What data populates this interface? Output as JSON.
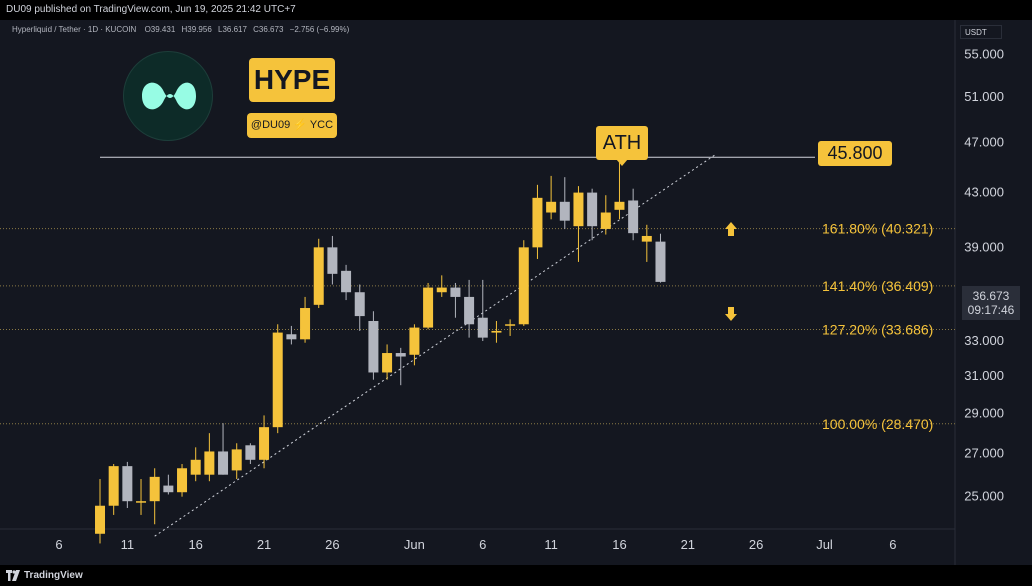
{
  "publish_info": "DU09 published on TradingView.com, Jun 19, 2025 21:42 UTC+7",
  "symbol_line": {
    "name": "Hyperliquid / Tether · 1D · KUCOIN",
    "open": "O39.431",
    "high": "H39.956",
    "low": "L36.617",
    "close": "C36.673",
    "change": "−2.756 (−6.99%)"
  },
  "currency": "USDT",
  "branding": {
    "ticker": "HYPE",
    "handle": "@DU09",
    "handle_suffix": "YCC",
    "footer": "TradingView"
  },
  "colors": {
    "background": "#141720",
    "bull_candle": "#f5c33b",
    "bear_candle": "#b2b5be",
    "accent_yellow": "#f5c33b",
    "coin_mint": "#97fce4"
  },
  "annotations": {
    "ath_label": "ATH",
    "resistance_label": "45.800",
    "up_arrow": "arrow-up-icon",
    "down_arrow": "arrow-down-icon"
  },
  "last_price": {
    "price": "36.673",
    "countdown": "09:17:46"
  },
  "chart_data": {
    "type": "candlestick",
    "interval": "1D",
    "x_ticks": [
      "6",
      "11",
      "16",
      "21",
      "26",
      "Jun",
      "6",
      "11",
      "16",
      "21",
      "26",
      "Jul",
      "6"
    ],
    "y_ticks": [
      "25.000",
      "27.000",
      "29.000",
      "31.000",
      "33.000",
      "39.000",
      "43.000",
      "47.000",
      "51.000",
      "55.000"
    ],
    "y_scale": "log",
    "ylim": [
      23.6,
      58.5
    ],
    "horizontal_levels": [
      {
        "value": 45.8,
        "label": ""
      },
      {
        "value": 40.321,
        "label": "161.80% (40.321)"
      },
      {
        "value": 36.409,
        "label": "141.40% (36.409)"
      },
      {
        "value": 33.686,
        "label": "127.20% (33.686)"
      },
      {
        "value": 28.47,
        "label": "100.00% (28.470)"
      }
    ],
    "trendline": {
      "from": [
        "May 13",
        23.3
      ],
      "to": [
        "Jun 23",
        46.0
      ]
    },
    "candles": [
      {
        "d": 9,
        "o": 23.4,
        "h": 25.8,
        "l": 23.0,
        "c": 24.6
      },
      {
        "d": 10,
        "o": 24.6,
        "h": 26.5,
        "l": 24.2,
        "c": 26.4
      },
      {
        "d": 11,
        "o": 26.4,
        "h": 26.6,
        "l": 24.5,
        "c": 24.8
      },
      {
        "d": 12,
        "o": 24.8,
        "h": 25.8,
        "l": 24.2,
        "c": 24.8
      },
      {
        "d": 13,
        "o": 24.8,
        "h": 26.3,
        "l": 23.8,
        "c": 25.9
      },
      {
        "d": 14,
        "o": 25.5,
        "h": 26.0,
        "l": 25.1,
        "c": 25.2
      },
      {
        "d": 15,
        "o": 25.2,
        "h": 26.5,
        "l": 25.0,
        "c": 26.3
      },
      {
        "d": 16,
        "o": 26.0,
        "h": 27.3,
        "l": 25.7,
        "c": 26.7
      },
      {
        "d": 17,
        "o": 26.0,
        "h": 28.0,
        "l": 25.7,
        "c": 27.1
      },
      {
        "d": 18,
        "o": 27.1,
        "h": 28.5,
        "l": 26.0,
        "c": 26.0
      },
      {
        "d": 19,
        "o": 26.2,
        "h": 27.5,
        "l": 25.8,
        "c": 27.2
      },
      {
        "d": 20,
        "o": 27.4,
        "h": 27.5,
        "l": 26.5,
        "c": 26.7
      },
      {
        "d": 21,
        "o": 26.7,
        "h": 28.9,
        "l": 26.3,
        "c": 28.3
      },
      {
        "d": 22,
        "o": 28.3,
        "h": 34.0,
        "l": 28.0,
        "c": 33.5
      },
      {
        "d": 23,
        "o": 33.4,
        "h": 33.9,
        "l": 32.8,
        "c": 33.1
      },
      {
        "d": 24,
        "o": 33.1,
        "h": 35.7,
        "l": 32.9,
        "c": 35.0
      },
      {
        "d": 25,
        "o": 35.2,
        "h": 39.6,
        "l": 35.0,
        "c": 39.0
      },
      {
        "d": 26,
        "o": 39.0,
        "h": 39.8,
        "l": 36.5,
        "c": 37.2
      },
      {
        "d": 27,
        "o": 37.4,
        "h": 37.8,
        "l": 35.5,
        "c": 36.0
      },
      {
        "d": 28,
        "o": 36.0,
        "h": 36.5,
        "l": 33.6,
        "c": 34.5
      },
      {
        "d": 29,
        "o": 34.2,
        "h": 34.8,
        "l": 30.8,
        "c": 31.2
      },
      {
        "d": 30,
        "o": 31.2,
        "h": 32.8,
        "l": 30.8,
        "c": 32.3
      },
      {
        "d": 31,
        "o": 32.3,
        "h": 32.6,
        "l": 30.5,
        "c": 32.1
      },
      {
        "d": 32,
        "o": 32.2,
        "h": 34.0,
        "l": 31.6,
        "c": 33.8
      },
      {
        "d": 33,
        "o": 33.8,
        "h": 36.6,
        "l": 33.7,
        "c": 36.3
      },
      {
        "d": 34,
        "o": 36.0,
        "h": 37.1,
        "l": 35.7,
        "c": 36.3
      },
      {
        "d": 35,
        "o": 36.3,
        "h": 36.6,
        "l": 34.4,
        "c": 35.7
      },
      {
        "d": 36,
        "o": 35.7,
        "h": 36.8,
        "l": 33.2,
        "c": 34.0
      },
      {
        "d": 37,
        "o": 34.4,
        "h": 36.8,
        "l": 33.0,
        "c": 33.2
      },
      {
        "d": 38,
        "o": 33.5,
        "h": 34.2,
        "l": 32.9,
        "c": 33.6
      },
      {
        "d": 39,
        "o": 34.0,
        "h": 34.3,
        "l": 33.3,
        "c": 34.0
      },
      {
        "d": 40,
        "o": 34.0,
        "h": 39.5,
        "l": 33.9,
        "c": 39.0
      },
      {
        "d": 41,
        "o": 39.0,
        "h": 43.6,
        "l": 38.2,
        "c": 42.6
      },
      {
        "d": 42,
        "o": 41.5,
        "h": 44.3,
        "l": 41.0,
        "c": 42.3
      },
      {
        "d": 43,
        "o": 42.3,
        "h": 44.2,
        "l": 40.3,
        "c": 40.9
      },
      {
        "d": 44,
        "o": 40.5,
        "h": 43.5,
        "l": 38.0,
        "c": 43.0
      },
      {
        "d": 45,
        "o": 43.0,
        "h": 43.3,
        "l": 39.5,
        "c": 40.5
      },
      {
        "d": 46,
        "o": 40.3,
        "h": 42.8,
        "l": 39.9,
        "c": 41.5
      },
      {
        "d": 47,
        "o": 41.7,
        "h": 45.8,
        "l": 41.0,
        "c": 42.3
      },
      {
        "d": 48,
        "o": 42.4,
        "h": 43.3,
        "l": 39.5,
        "c": 40.0
      },
      {
        "d": 49,
        "o": 39.4,
        "h": 40.6,
        "l": 38.0,
        "c": 39.8
      },
      {
        "d": 50,
        "o": 39.4,
        "h": 39.96,
        "l": 36.62,
        "c": 36.67
      }
    ]
  }
}
